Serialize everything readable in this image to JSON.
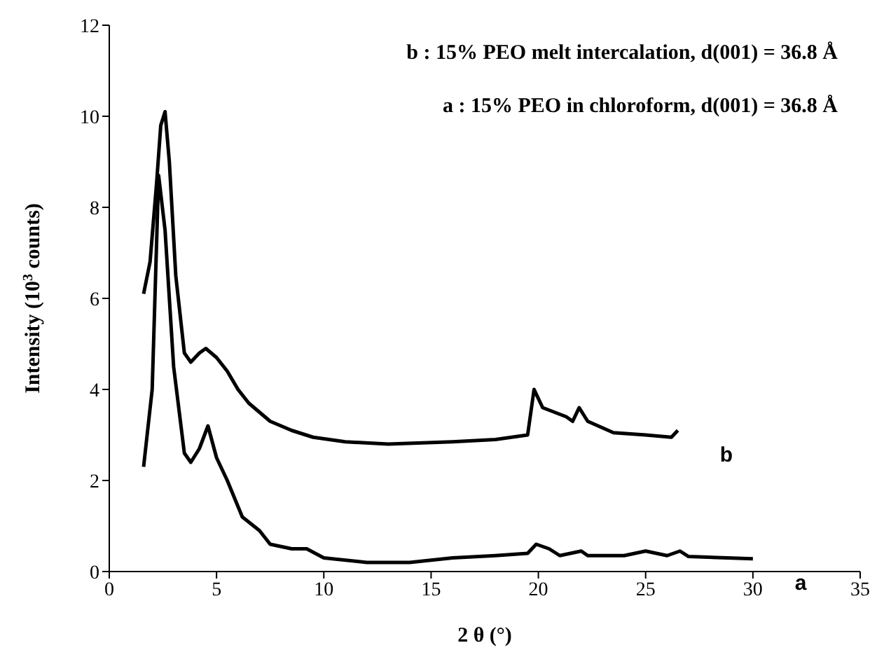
{
  "chart_data": {
    "type": "line",
    "xlabel": "2 θ (°)",
    "ylabel": "Intensity (10$^{3}$ counts)",
    "annotations": [
      "b : 15% PEO melt intercalation, d(001) = 36.8 Å",
      "a : 15% PEO in chloroform, d(001) = 36.8 Å"
    ],
    "xlim": [
      0,
      35
    ],
    "xticks": [
      0,
      5,
      10,
      15,
      20,
      25,
      30,
      35
    ],
    "ylim": [
      0,
      12
    ],
    "yticks": [
      0,
      2,
      4,
      6,
      8,
      10,
      12
    ],
    "series": [
      {
        "name": "b",
        "color": "#000000",
        "x": [
          1.6,
          1.9,
          2.2,
          2.4,
          2.6,
          2.8,
          3.1,
          3.5,
          3.8,
          4.2,
          4.5,
          5.0,
          5.5,
          6.0,
          6.5,
          7.5,
          8.5,
          9.5,
          11,
          13,
          16,
          18,
          19.5,
          19.8,
          20.2,
          21.3,
          21.6,
          21.9,
          22.3,
          23.5,
          25,
          26.2,
          26.5
        ],
        "values": [
          6.1,
          6.8,
          8.5,
          9.8,
          10.1,
          9.0,
          6.5,
          4.8,
          4.6,
          4.8,
          4.9,
          4.7,
          4.4,
          4.0,
          3.7,
          3.3,
          3.1,
          2.95,
          2.85,
          2.8,
          2.85,
          2.9,
          3.0,
          4.0,
          3.6,
          3.4,
          3.3,
          3.6,
          3.3,
          3.05,
          3.0,
          2.95,
          3.1
        ]
      },
      {
        "name": "a",
        "color": "#000000",
        "x": [
          1.6,
          2.0,
          2.3,
          2.6,
          3.0,
          3.5,
          3.8,
          4.2,
          4.6,
          5.0,
          5.5,
          6.2,
          7.0,
          7.5,
          8.5,
          9.2,
          10,
          12,
          14,
          16,
          18,
          19.5,
          19.9,
          20.5,
          21,
          22,
          22.3,
          24,
          25,
          26,
          26.6,
          27,
          30
        ],
        "values": [
          2.3,
          4.0,
          8.7,
          7.5,
          4.5,
          2.6,
          2.4,
          2.7,
          3.2,
          2.5,
          2.0,
          1.2,
          0.9,
          0.6,
          0.5,
          0.5,
          0.3,
          0.2,
          0.2,
          0.3,
          0.35,
          0.4,
          0.6,
          0.5,
          0.35,
          0.45,
          0.35,
          0.35,
          0.45,
          0.35,
          0.45,
          0.33,
          0.28
        ]
      }
    ]
  }
}
